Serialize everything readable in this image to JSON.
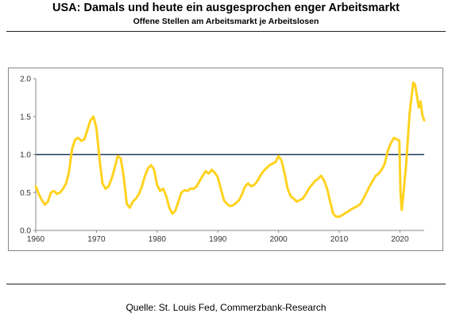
{
  "header": {
    "title": "USA: Damals und heute ein ausgesprochen enger Arbeitsmarkt",
    "subtitle": "Offene Stellen am Arbeitsmarkt je Arbeitslosen"
  },
  "footer": {
    "source": "Quelle: St. Louis Fed, Commerzbank-Research"
  },
  "colors": {
    "line": "#FFD21F",
    "reference": "#1F3A5A",
    "axis": "#888888"
  },
  "chart_data": {
    "type": "line",
    "title": "USA: Damals und heute ein ausgesprochen enger Arbeitsmarkt",
    "subtitle": "Offene Stellen am Arbeitsmarkt je Arbeitslosen",
    "xlim": [
      1960,
      2024
    ],
    "ylim": [
      0,
      2.0
    ],
    "x_ticks": [
      "1960",
      "1970",
      "1980",
      "1990",
      "2000",
      "2010",
      "2020"
    ],
    "y_ticks": [
      "0.0",
      "0.5",
      "1.0",
      "1.5",
      "2.0"
    ],
    "grid": false,
    "legend": "none",
    "reference_line": {
      "y": 1.0
    },
    "series": [
      {
        "values": [
          [
            1960.0,
            0.58
          ],
          [
            1960.5,
            0.48
          ],
          [
            1961.0,
            0.4
          ],
          [
            1961.5,
            0.34
          ],
          [
            1962.0,
            0.38
          ],
          [
            1962.5,
            0.5
          ],
          [
            1963.0,
            0.52
          ],
          [
            1963.5,
            0.48
          ],
          [
            1964.0,
            0.5
          ],
          [
            1964.5,
            0.55
          ],
          [
            1965.0,
            0.62
          ],
          [
            1965.5,
            0.78
          ],
          [
            1966.0,
            1.08
          ],
          [
            1966.5,
            1.2
          ],
          [
            1967.0,
            1.22
          ],
          [
            1967.5,
            1.18
          ],
          [
            1968.0,
            1.2
          ],
          [
            1968.5,
            1.32
          ],
          [
            1969.0,
            1.45
          ],
          [
            1969.5,
            1.5
          ],
          [
            1970.0,
            1.35
          ],
          [
            1970.5,
            0.95
          ],
          [
            1971.0,
            0.62
          ],
          [
            1971.5,
            0.55
          ],
          [
            1972.0,
            0.58
          ],
          [
            1972.5,
            0.68
          ],
          [
            1973.0,
            0.82
          ],
          [
            1973.5,
            0.98
          ],
          [
            1974.0,
            0.95
          ],
          [
            1974.5,
            0.7
          ],
          [
            1975.0,
            0.35
          ],
          [
            1975.5,
            0.3
          ],
          [
            1976.0,
            0.38
          ],
          [
            1976.5,
            0.42
          ],
          [
            1977.0,
            0.48
          ],
          [
            1977.5,
            0.58
          ],
          [
            1978.0,
            0.72
          ],
          [
            1978.5,
            0.82
          ],
          [
            1979.0,
            0.86
          ],
          [
            1979.5,
            0.8
          ],
          [
            1980.0,
            0.6
          ],
          [
            1980.5,
            0.52
          ],
          [
            1981.0,
            0.55
          ],
          [
            1981.5,
            0.45
          ],
          [
            1982.0,
            0.3
          ],
          [
            1982.5,
            0.22
          ],
          [
            1983.0,
            0.26
          ],
          [
            1983.5,
            0.38
          ],
          [
            1984.0,
            0.5
          ],
          [
            1984.5,
            0.53
          ],
          [
            1985.0,
            0.52
          ],
          [
            1985.5,
            0.55
          ],
          [
            1986.0,
            0.55
          ],
          [
            1986.5,
            0.58
          ],
          [
            1987.0,
            0.65
          ],
          [
            1987.5,
            0.72
          ],
          [
            1988.0,
            0.78
          ],
          [
            1988.5,
            0.75
          ],
          [
            1989.0,
            0.8
          ],
          [
            1989.5,
            0.76
          ],
          [
            1990.0,
            0.7
          ],
          [
            1990.5,
            0.55
          ],
          [
            1991.0,
            0.4
          ],
          [
            1991.5,
            0.35
          ],
          [
            1992.0,
            0.32
          ],
          [
            1992.5,
            0.33
          ],
          [
            1993.0,
            0.36
          ],
          [
            1993.5,
            0.4
          ],
          [
            1994.0,
            0.48
          ],
          [
            1994.5,
            0.58
          ],
          [
            1995.0,
            0.62
          ],
          [
            1995.5,
            0.58
          ],
          [
            1996.0,
            0.6
          ],
          [
            1996.5,
            0.65
          ],
          [
            1997.0,
            0.72
          ],
          [
            1997.5,
            0.78
          ],
          [
            1998.0,
            0.82
          ],
          [
            1998.5,
            0.86
          ],
          [
            1999.0,
            0.88
          ],
          [
            1999.5,
            0.9
          ],
          [
            2000.0,
            0.98
          ],
          [
            2000.5,
            0.92
          ],
          [
            2001.0,
            0.75
          ],
          [
            2001.5,
            0.55
          ],
          [
            2002.0,
            0.45
          ],
          [
            2002.5,
            0.42
          ],
          [
            2003.0,
            0.38
          ],
          [
            2003.5,
            0.4
          ],
          [
            2004.0,
            0.42
          ],
          [
            2004.5,
            0.48
          ],
          [
            2005.0,
            0.55
          ],
          [
            2005.5,
            0.6
          ],
          [
            2006.0,
            0.65
          ],
          [
            2006.5,
            0.68
          ],
          [
            2007.0,
            0.72
          ],
          [
            2007.5,
            0.66
          ],
          [
            2008.0,
            0.55
          ],
          [
            2008.5,
            0.38
          ],
          [
            2009.0,
            0.22
          ],
          [
            2009.5,
            0.18
          ],
          [
            2010.0,
            0.18
          ],
          [
            2010.5,
            0.2
          ],
          [
            2011.0,
            0.23
          ],
          [
            2011.5,
            0.25
          ],
          [
            2012.0,
            0.28
          ],
          [
            2012.5,
            0.3
          ],
          [
            2013.0,
            0.32
          ],
          [
            2013.5,
            0.35
          ],
          [
            2014.0,
            0.42
          ],
          [
            2014.5,
            0.5
          ],
          [
            2015.0,
            0.58
          ],
          [
            2015.5,
            0.65
          ],
          [
            2016.0,
            0.72
          ],
          [
            2016.5,
            0.75
          ],
          [
            2017.0,
            0.8
          ],
          [
            2017.5,
            0.88
          ],
          [
            2018.0,
            1.05
          ],
          [
            2018.5,
            1.15
          ],
          [
            2019.0,
            1.22
          ],
          [
            2019.5,
            1.2
          ],
          [
            2019.9,
            1.18
          ],
          [
            2020.1,
            0.5
          ],
          [
            2020.3,
            0.27
          ],
          [
            2020.6,
            0.5
          ],
          [
            2021.0,
            0.85
          ],
          [
            2021.3,
            1.2
          ],
          [
            2021.6,
            1.55
          ],
          [
            2021.9,
            1.75
          ],
          [
            2022.2,
            1.95
          ],
          [
            2022.5,
            1.92
          ],
          [
            2022.8,
            1.78
          ],
          [
            2023.1,
            1.62
          ],
          [
            2023.4,
            1.7
          ],
          [
            2023.7,
            1.52
          ],
          [
            2024.0,
            1.45
          ]
        ]
      }
    ]
  }
}
